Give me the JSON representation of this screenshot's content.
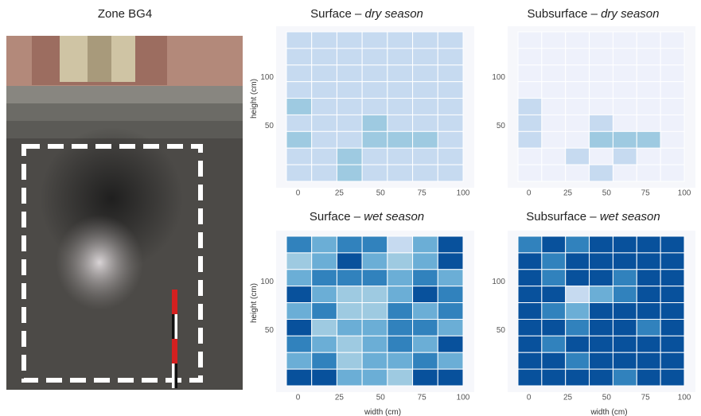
{
  "photo": {
    "caption": "Zone BG4"
  },
  "chart_data": [
    {
      "type": "heatmap",
      "title": {
        "main": "Surface –",
        "season": "dry season"
      },
      "ylabel": "height (cm)",
      "xlim": [
        -7,
        100
      ],
      "ylim": [
        -7,
        147
      ],
      "xticks": [
        0,
        25,
        50,
        75,
        100
      ],
      "yticks": [
        50,
        100
      ],
      "colors": [
        "#eef1fb",
        "#c6daf0",
        "#9ecae1",
        "#6baed6",
        "#3182bd",
        "#08519c"
      ],
      "rows": [
        [
          1,
          1,
          1,
          1,
          1,
          1,
          1
        ],
        [
          1,
          1,
          1,
          1,
          1,
          1,
          1
        ],
        [
          1,
          1,
          1,
          1,
          1,
          1,
          1
        ],
        [
          1,
          1,
          1,
          1,
          1,
          1,
          1
        ],
        [
          2,
          1,
          1,
          1,
          1,
          1,
          1
        ],
        [
          1,
          1,
          1,
          2,
          1,
          1,
          1
        ],
        [
          2,
          1,
          1,
          2,
          2,
          2,
          1
        ],
        [
          1,
          1,
          2,
          1,
          1,
          1,
          1
        ],
        [
          1,
          1,
          2,
          1,
          1,
          1,
          1
        ]
      ]
    },
    {
      "type": "heatmap",
      "title": {
        "main": "Subsurface –",
        "season": "dry season"
      },
      "xlim": [
        -7,
        100
      ],
      "ylim": [
        -7,
        147
      ],
      "xticks": [
        0,
        25,
        50,
        75,
        100
      ],
      "yticks": [
        50,
        100
      ],
      "colors": [
        "#eef1fb",
        "#c6daf0",
        "#9ecae1",
        "#6baed6",
        "#3182bd",
        "#08519c"
      ],
      "rows": [
        [
          0,
          0,
          0,
          0,
          0,
          0,
          0
        ],
        [
          0,
          0,
          0,
          0,
          0,
          0,
          0
        ],
        [
          0,
          0,
          0,
          0,
          0,
          0,
          0
        ],
        [
          0,
          0,
          0,
          0,
          0,
          0,
          0
        ],
        [
          1,
          0,
          0,
          0,
          0,
          0,
          0
        ],
        [
          1,
          0,
          0,
          1,
          0,
          0,
          0
        ],
        [
          1,
          0,
          0,
          2,
          2,
          2,
          0
        ],
        [
          0,
          0,
          1,
          0,
          1,
          0,
          0
        ],
        [
          0,
          0,
          0,
          1,
          0,
          0,
          0
        ]
      ]
    },
    {
      "type": "heatmap",
      "title": {
        "main": "Surface –",
        "season": "wet season"
      },
      "xlabel": "width (cm)",
      "ylabel": "height (cm)",
      "xlim": [
        -7,
        100
      ],
      "ylim": [
        -7,
        147
      ],
      "xticks": [
        0,
        25,
        50,
        75,
        100
      ],
      "yticks": [
        50,
        100
      ],
      "colors": [
        "#eef1fb",
        "#c6daf0",
        "#9ecae1",
        "#6baed6",
        "#3182bd",
        "#08519c"
      ],
      "rows": [
        [
          4,
          3,
          4,
          4,
          1,
          3,
          5
        ],
        [
          2,
          3,
          5,
          3,
          2,
          3,
          5
        ],
        [
          3,
          4,
          4,
          4,
          3,
          4,
          3
        ],
        [
          5,
          3,
          2,
          2,
          3,
          5,
          4
        ],
        [
          3,
          4,
          2,
          2,
          4,
          3,
          4
        ],
        [
          5,
          2,
          3,
          3,
          4,
          4,
          3
        ],
        [
          4,
          3,
          2,
          3,
          4,
          3,
          5
        ],
        [
          3,
          4,
          2,
          3,
          3,
          4,
          3
        ],
        [
          5,
          5,
          3,
          3,
          2,
          5,
          5
        ]
      ]
    },
    {
      "type": "heatmap",
      "title": {
        "main": "Subsurface –",
        "season": "wet season"
      },
      "xlabel": "width (cm)",
      "xlim": [
        -7,
        100
      ],
      "ylim": [
        -7,
        147
      ],
      "xticks": [
        0,
        25,
        50,
        75,
        100
      ],
      "yticks": [
        50,
        100
      ],
      "colors": [
        "#eef1fb",
        "#c6daf0",
        "#9ecae1",
        "#6baed6",
        "#3182bd",
        "#08519c"
      ],
      "rows": [
        [
          4,
          5,
          4,
          5,
          5,
          5,
          5
        ],
        [
          5,
          4,
          5,
          5,
          5,
          5,
          5
        ],
        [
          5,
          4,
          5,
          5,
          4,
          5,
          5
        ],
        [
          5,
          5,
          1,
          3,
          4,
          5,
          5
        ],
        [
          5,
          4,
          3,
          5,
          5,
          5,
          5
        ],
        [
          5,
          5,
          4,
          5,
          5,
          4,
          5
        ],
        [
          5,
          4,
          5,
          5,
          5,
          5,
          5
        ],
        [
          5,
          5,
          4,
          5,
          5,
          5,
          5
        ],
        [
          5,
          5,
          5,
          5,
          4,
          5,
          5
        ]
      ]
    }
  ]
}
